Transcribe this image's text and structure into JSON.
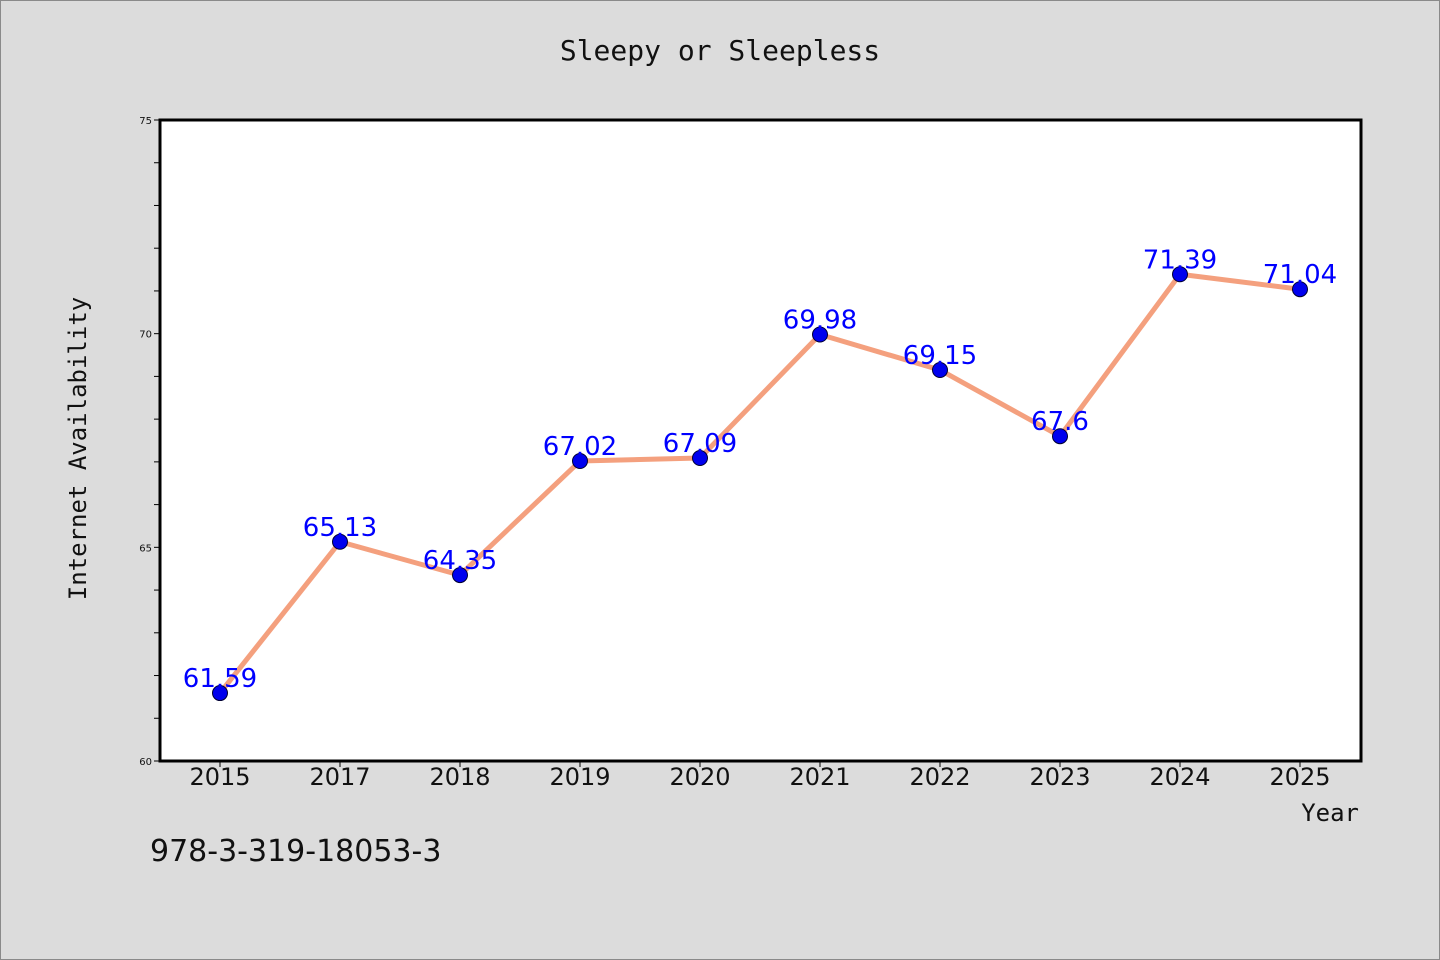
{
  "title": "Sleepy or Sleepless",
  "footnote": "978-3-319-18053-3",
  "chart_data": {
    "type": "line",
    "title": "Sleepy or Sleepless",
    "xlabel": "Year",
    "ylabel": "Internet Availability",
    "categories": [
      "2015",
      "2017",
      "2018",
      "2019",
      "2020",
      "2021",
      "2022",
      "2023",
      "2024",
      "2025"
    ],
    "series": [
      {
        "values": [
          61.59,
          65.13,
          64.35,
          67.02,
          67.09,
          69.98,
          69.15,
          67.6,
          71.39,
          71.04
        ],
        "labels": [
          "61.59",
          "65.13",
          "64.35",
          "67.02",
          "67.09",
          "69.98",
          "69.15",
          "67.6",
          "71.39",
          "71.04"
        ],
        "line_color": "#f4a07e",
        "marker_color": "#0000ee"
      }
    ],
    "ylim": [
      60,
      75
    ],
    "yticks": [
      60,
      65,
      70,
      75
    ],
    "grid": false,
    "legend": "none",
    "data_label_color": "#0000ff"
  }
}
